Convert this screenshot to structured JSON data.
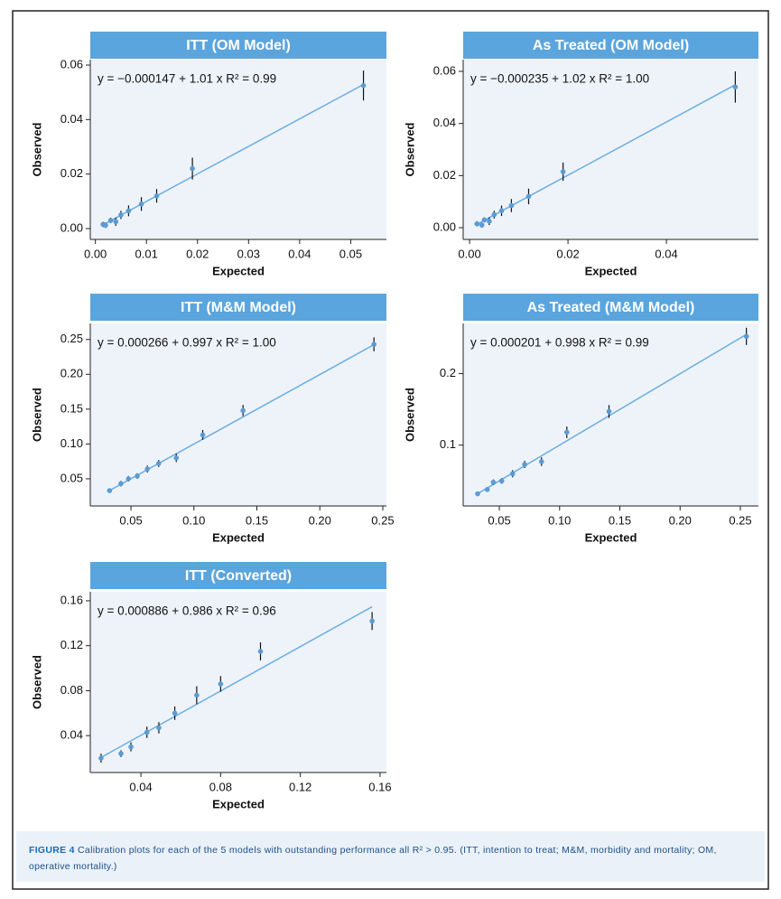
{
  "chart_data": [
    {
      "type": "scatter",
      "title": "ITT (OM Model)",
      "annotation": "y = −0.000147 + 1.01 x   R² = 0.99",
      "x_label": "Expected",
      "y_label": "Observed",
      "color": "#5b9bd5",
      "x": [
        0.0015,
        0.002,
        0.003,
        0.004,
        0.005,
        0.0065,
        0.009,
        0.012,
        0.019,
        0.0525
      ],
      "values": [
        0.0015,
        0.0012,
        0.003,
        0.0025,
        0.005,
        0.0065,
        0.009,
        0.012,
        0.022,
        0.0525
      ],
      "errors": [
        0.001,
        0.001,
        0.001,
        0.0015,
        0.0015,
        0.002,
        0.0025,
        0.0025,
        0.004,
        0.0055
      ],
      "fit": {
        "intercept": -0.000147,
        "slope": 1.01
      },
      "xlim": [
        -0.001,
        0.057
      ],
      "ylim": [
        -0.004,
        0.062
      ],
      "xticks": [
        {
          "value": 0,
          "label": "0.00"
        },
        0.01,
        0.02,
        0.03,
        0.04,
        0.05
      ],
      "yticks": [
        {
          "value": 0,
          "label": "0.00"
        },
        0.02,
        0.04,
        0.06
      ]
    },
    {
      "type": "scatter",
      "title": "As Treated (OM Model)",
      "annotation": "y = −0.000235 + 1.02 x   R² = 1.00",
      "x_label": "Expected",
      "y_label": "Observed",
      "color": "#5b9bd5",
      "x": [
        0.0015,
        0.0025,
        0.003,
        0.004,
        0.005,
        0.0065,
        0.0085,
        0.012,
        0.019,
        0.054
      ],
      "values": [
        0.0015,
        0.001,
        0.003,
        0.0025,
        0.005,
        0.0065,
        0.0085,
        0.012,
        0.0215,
        0.054
      ],
      "errors": [
        0.001,
        0.001,
        0.001,
        0.0015,
        0.0015,
        0.002,
        0.0025,
        0.003,
        0.0035,
        0.006
      ],
      "fit": {
        "intercept": -0.000235,
        "slope": 1.02
      },
      "xlim": [
        -0.0013,
        0.0587
      ],
      "ylim": [
        -0.0045,
        0.0645
      ],
      "xticks": [
        {
          "value": 0,
          "label": "0.00"
        },
        0.02,
        0.04
      ],
      "yticks": [
        {
          "value": 0,
          "label": "0.00"
        },
        0.02,
        0.04,
        0.06
      ]
    },
    {
      "type": "scatter",
      "title": "ITT (M&M Model)",
      "annotation": "y = 0.000266 + 0.997 x   R² = 1.00",
      "x_label": "Expected",
      "y_label": "Observed",
      "color": "#5b9bd5",
      "x": [
        0.033,
        0.042,
        0.048,
        0.055,
        0.063,
        0.072,
        0.086,
        0.107,
        0.139,
        0.243
      ],
      "values": [
        0.033,
        0.043,
        0.05,
        0.054,
        0.064,
        0.072,
        0.08,
        0.113,
        0.148,
        0.243
      ],
      "errors": [
        0.003,
        0.004,
        0.004,
        0.004,
        0.005,
        0.005,
        0.006,
        0.007,
        0.008,
        0.01
      ],
      "fit": {
        "intercept": 0.000266,
        "slope": 0.997
      },
      "xlim": [
        0.0177,
        0.2529
      ],
      "ylim": [
        0.011,
        0.273
      ],
      "xticks": [
        0.05,
        {
          "value": 0.1,
          "label": "0.10"
        },
        0.15,
        {
          "value": 0.2,
          "label": "0.20"
        },
        0.25
      ],
      "yticks": [
        0.05,
        {
          "value": 0.1,
          "label": "0.10"
        },
        0.15,
        {
          "value": 0.2,
          "label": "0.20"
        },
        0.25
      ]
    },
    {
      "type": "scatter",
      "title": "As Treated (M&M Model)",
      "annotation": "y = 0.000201 + 0.998 x   R² = 0.99",
      "x_label": "Expected",
      "y_label": "Observed",
      "color": "#5b9bd5",
      "x": [
        0.032,
        0.04,
        0.045,
        0.052,
        0.061,
        0.071,
        0.085,
        0.106,
        0.141,
        0.255
      ],
      "values": [
        0.032,
        0.038,
        0.048,
        0.05,
        0.06,
        0.073,
        0.077,
        0.118,
        0.147,
        0.252
      ],
      "errors": [
        0.002,
        0.003,
        0.004,
        0.004,
        0.005,
        0.005,
        0.006,
        0.008,
        0.009,
        0.012
      ],
      "fit": {
        "intercept": 0.000201,
        "slope": 0.998
      },
      "xlim": [
        0.02,
        0.265
      ],
      "ylim": [
        0.015,
        0.27
      ],
      "xticks": [
        0.05,
        {
          "value": 0.1,
          "label": "0.10"
        },
        0.15,
        {
          "value": 0.2,
          "label": "0.20"
        },
        0.25
      ],
      "yticks": [
        0.1,
        0.2
      ]
    },
    {
      "type": "scatter",
      "title": "ITT (Converted)",
      "annotation": "y = 0.000886 + 0.986 x   R² = 0.96",
      "x_label": "Expected",
      "y_label": "Observed",
      "color": "#5b9bd5",
      "x": [
        0.02,
        0.03,
        0.035,
        0.043,
        0.049,
        0.057,
        0.068,
        0.08,
        0.1,
        0.156
      ],
      "values": [
        0.02,
        0.024,
        0.03,
        0.043,
        0.047,
        0.06,
        0.076,
        0.086,
        0.115,
        0.142
      ],
      "errors": [
        0.004,
        0.003,
        0.004,
        0.005,
        0.005,
        0.006,
        0.008,
        0.007,
        0.008,
        0.008
      ],
      "fit": {
        "intercept": 0.000886,
        "slope": 0.986
      },
      "xlim": [
        0.0146,
        0.1632
      ],
      "ylim": [
        0.0072,
        0.168
      ],
      "xticks": [
        0.04,
        0.08,
        0.12,
        0.16
      ],
      "yticks": [
        0.04,
        0.08,
        0.12,
        0.16
      ]
    }
  ],
  "caption": {
    "label": "FIGURE 4",
    "text": "Calibration plots for each of the 5 models with outstanding performance all R² > 0.95. (ITT, intention to treat; M&M, morbidity and mortality; OM, operative mortality.)"
  }
}
